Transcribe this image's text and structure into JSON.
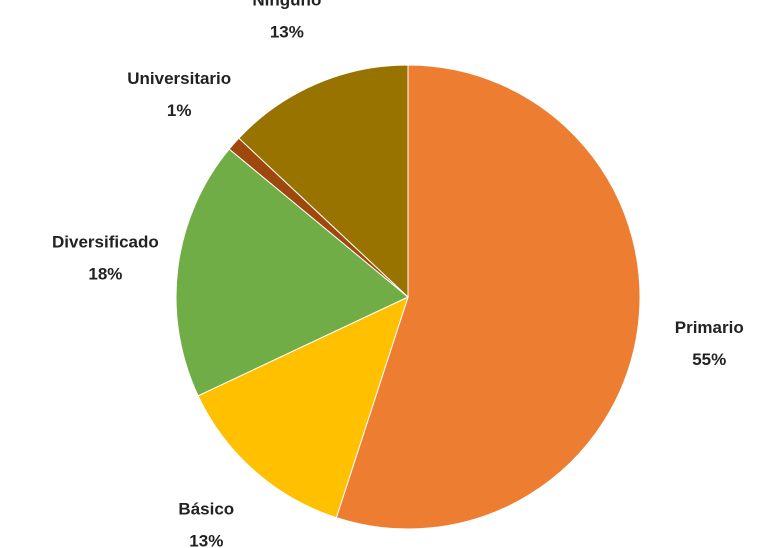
{
  "chart_data": {
    "type": "pie",
    "categories": [
      "Primario",
      "Básico",
      "Diversificado",
      "Universitario",
      "Ninguno"
    ],
    "values": [
      55,
      13,
      18,
      1,
      13
    ],
    "value_labels": [
      "55%",
      "13%",
      "18%",
      "1%",
      "13%"
    ],
    "colors": [
      "#ed7d31",
      "#ffc000",
      "#70ad47",
      "#9e480e",
      "#997300"
    ]
  }
}
